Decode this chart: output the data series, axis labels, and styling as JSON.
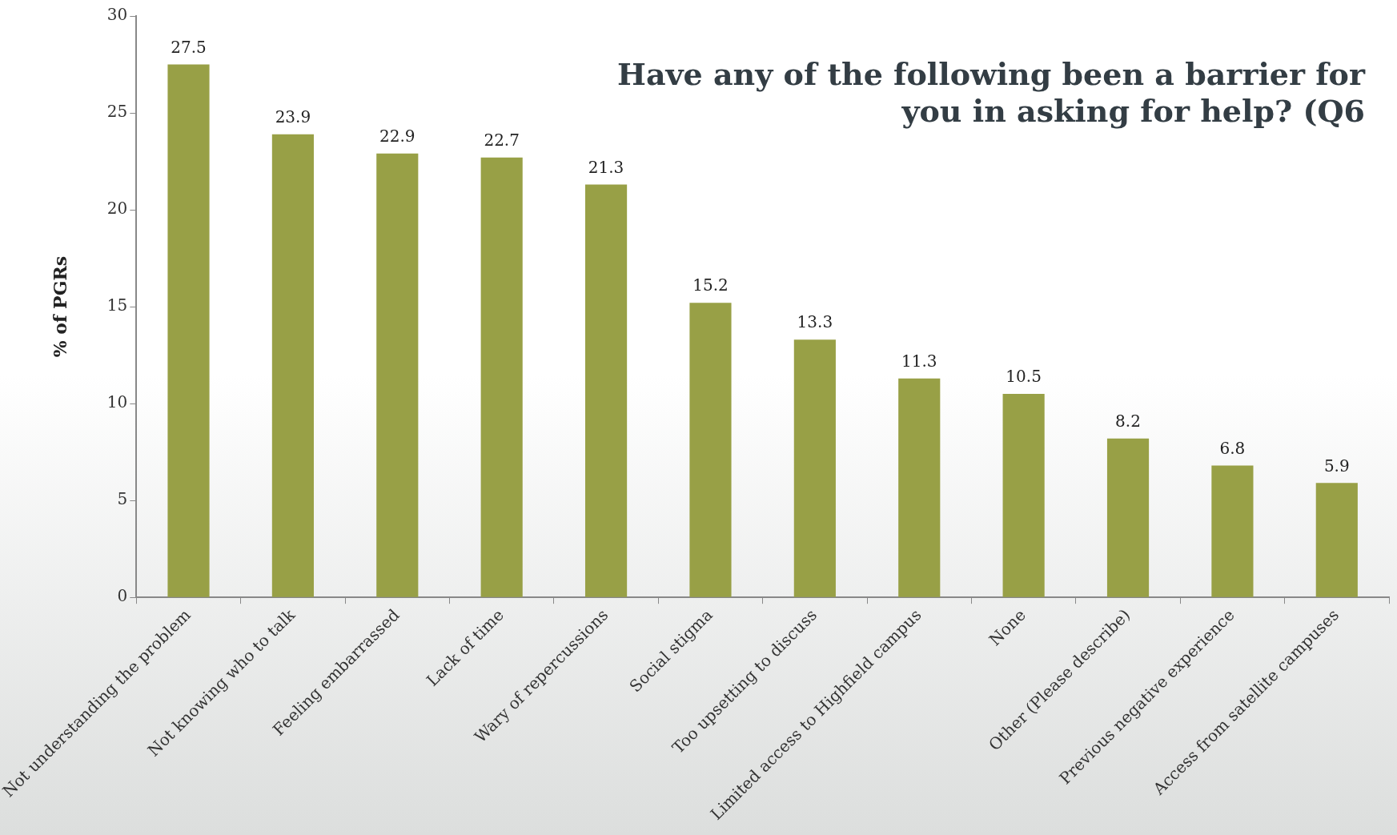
{
  "chart_data": {
    "type": "bar",
    "title": "Have any of the following been a barrier for you in asking for help? (Q6",
    "ylabel": "% of PGRs",
    "categories": [
      "Not understanding the problem",
      "Not knowing who to talk",
      "Feeling embarrassed",
      "Lack of time",
      "Wary of repercussions",
      "Social stigma",
      "Too upsetting to discuss",
      "Limited access to Highfield campus",
      "None",
      "Other (Please describe)",
      "Previous negative experience",
      "Access from satellite campuses"
    ],
    "values": [
      27.5,
      23.9,
      22.9,
      22.7,
      21.3,
      15.2,
      13.3,
      11.3,
      10.5,
      8.2,
      6.8,
      5.9
    ],
    "color": "#98a046",
    "ylim": [
      0,
      30
    ],
    "yticks": [
      0,
      5,
      10,
      15,
      20,
      25,
      30
    ],
    "grid": false,
    "legend": false,
    "data_labels": true
  }
}
